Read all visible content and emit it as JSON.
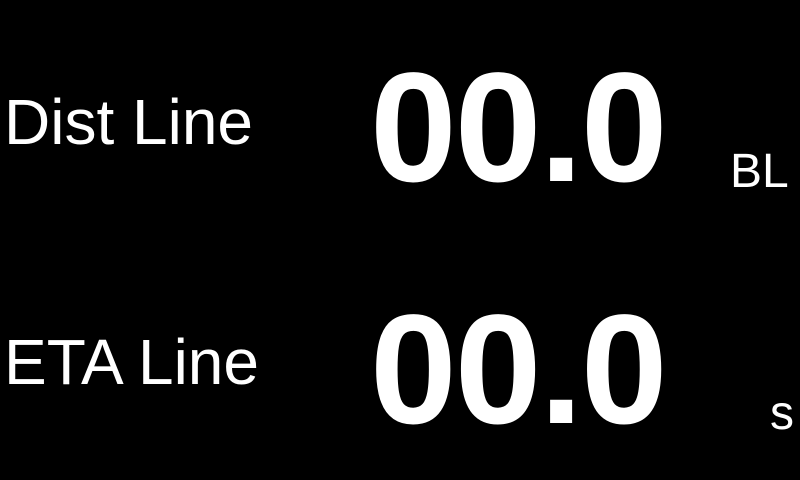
{
  "rows": [
    {
      "label": "Dist Line",
      "value": "00.0",
      "unit": "BL"
    },
    {
      "label": "ETA Line",
      "value": "00.0",
      "unit": "s"
    }
  ],
  "colors": {
    "background": "#000000",
    "text": "#ffffff"
  }
}
